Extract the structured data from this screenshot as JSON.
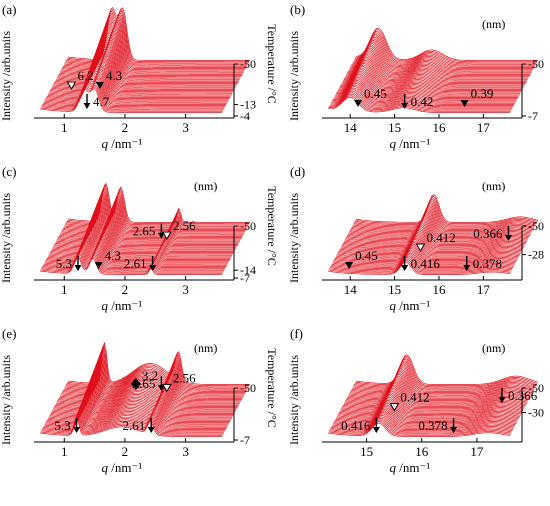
{
  "figure": {
    "y_axis_label": "Intensity /arb.units",
    "right_axis_label": "Temperature /°C",
    "x_axis_label_main": "q",
    "x_axis_label_unit": " /nm⁻¹",
    "trace_color": "#e0101b"
  },
  "chart_data": [
    {
      "panel": "(a)",
      "type": "line",
      "unit_label": "",
      "xlim": [
        0.6,
        3.6
      ],
      "x_ticks": [
        1.0,
        2.0,
        3.0
      ],
      "temp_ticks": [
        "-50",
        "-13",
        "-4"
      ],
      "temp_tick_pos": [
        0.0,
        0.78,
        1.0
      ],
      "trace_count": 46,
      "peaks": [
        {
          "q": 1.32,
          "height": 0.72,
          "width": 0.07
        },
        {
          "q": 1.5,
          "height": 0.72,
          "width": 0.07
        }
      ],
      "annotations": [
        {
          "label": "6.2",
          "marker": "open-triangle",
          "q": 0.98,
          "temp": -30
        },
        {
          "label": "4.7",
          "marker": "arrow",
          "q": 1.25,
          "temp": -27
        },
        {
          "label": "4.3",
          "marker": "filled-triangle",
          "q": 1.45,
          "temp": -30
        }
      ]
    },
    {
      "panel": "(b)",
      "type": "line",
      "unit_label": "(nm)",
      "xlim": [
        13.5,
        17.6
      ],
      "x_ticks": [
        14,
        15,
        16,
        17
      ],
      "temp_ticks": [
        "-50",
        "-7"
      ],
      "temp_tick_pos": [
        0.0,
        1.0
      ],
      "trace_count": 46,
      "peaks": [
        {
          "q": 14.0,
          "height": 0.45,
          "width": 0.18
        },
        {
          "q": 15.2,
          "height": 0.15,
          "width": 0.25
        }
      ],
      "annotations": [
        {
          "label": "0.45",
          "marker": "filled-triangle",
          "q": 14.0,
          "temp": -28
        },
        {
          "label": "0.42",
          "marker": "arrow",
          "q": 15.1,
          "temp": -20
        },
        {
          "label": "0.39",
          "marker": "filled-triangle",
          "q": 16.4,
          "temp": -28
        }
      ]
    },
    {
      "panel": "(c)",
      "type": "line",
      "unit_label": "(nm)",
      "xlim": [
        0.6,
        3.6
      ],
      "x_ticks": [
        1.0,
        2.0,
        3.0
      ],
      "temp_ticks": [
        "-50",
        "-14",
        "-7"
      ],
      "temp_tick_pos": [
        0.0,
        0.85,
        1.0
      ],
      "trace_count": 46,
      "peaks": [
        {
          "q": 1.22,
          "height": 0.55,
          "width": 0.06
        },
        {
          "q": 1.47,
          "height": 0.5,
          "width": 0.06
        },
        {
          "q": 2.43,
          "height": 0.2,
          "width": 0.03
        }
      ],
      "annotations": [
        {
          "label": "5.3",
          "marker": "arrow",
          "q": 1.18,
          "temp": -10
        },
        {
          "label": "4.3",
          "marker": "filled-triangle",
          "q": 1.45,
          "temp": -25
        },
        {
          "label": "2.65",
          "marker": "arrow",
          "q": 2.37,
          "temp": -62
        },
        {
          "label": "2.56",
          "marker": "open-triangle",
          "q": 2.46,
          "temp": -60
        },
        {
          "label": "2.61",
          "marker": "arrow",
          "q": 2.41,
          "temp": -10
        }
      ]
    },
    {
      "panel": "(d)",
      "type": "line",
      "unit_label": "(nm)",
      "xlim": [
        13.5,
        17.6
      ],
      "x_ticks": [
        14,
        15,
        16,
        17
      ],
      "temp_ticks": [
        "-50",
        "-28"
      ],
      "temp_tick_pos": [
        0.0,
        0.55
      ],
      "trace_count": 46,
      "peaks": [
        {
          "q": 15.25,
          "height": 0.4,
          "width": 0.12
        },
        {
          "q": 17.2,
          "height": 0.08,
          "width": 0.3
        }
      ],
      "annotations": [
        {
          "label": "0.45",
          "marker": "filled-triangle",
          "q": 13.85,
          "temp": -20
        },
        {
          "label": "0.416",
          "marker": "arrow",
          "q": 15.1,
          "temp": -20
        },
        {
          "label": "0.412",
          "marker": "open-triangle",
          "q": 15.28,
          "temp": -48
        },
        {
          "label": "0.378",
          "marker": "arrow",
          "q": 16.5,
          "temp": -20
        },
        {
          "label": "0.366",
          "marker": "arrow",
          "q": 17.25,
          "temp": -60
        }
      ]
    },
    {
      "panel": "(e)",
      "type": "line",
      "unit_label": "(nm)",
      "xlim": [
        0.6,
        3.6
      ],
      "x_ticks": [
        1.0,
        2.0,
        3.0
      ],
      "temp_ticks": [
        "-50",
        "-7"
      ],
      "temp_tick_pos": [
        0.0,
        1.0
      ],
      "trace_count": 46,
      "peaks": [
        {
          "q": 1.2,
          "height": 0.58,
          "width": 0.04
        },
        {
          "q": 1.95,
          "height": 0.3,
          "width": 0.28
        },
        {
          "q": 2.42,
          "height": 0.4,
          "width": 0.05
        }
      ],
      "annotations": [
        {
          "label": "5.3",
          "marker": "arrow",
          "q": 1.18,
          "temp": -5
        },
        {
          "label": "3.2",
          "marker": "filled-diamond",
          "q": 1.95,
          "temp": -70
        },
        {
          "label": "2.65",
          "marker": "arrow",
          "q": 2.37,
          "temp": -70
        },
        {
          "label": "2.56",
          "marker": "open-triangle",
          "q": 2.46,
          "temp": -68
        },
        {
          "label": "2.61",
          "marker": "arrow",
          "q": 2.41,
          "temp": -5
        }
      ]
    },
    {
      "panel": "(f)",
      "type": "line",
      "unit_label": "(nm)",
      "xlim": [
        14.3,
        17.6
      ],
      "x_ticks": [
        15,
        16,
        17
      ],
      "temp_ticks": [
        "-50",
        "-30"
      ],
      "temp_tick_pos": [
        0.0,
        0.47
      ],
      "trace_count": 46,
      "peaks": [
        {
          "q": 15.22,
          "height": 0.42,
          "width": 0.12
        },
        {
          "q": 17.2,
          "height": 0.12,
          "width": 0.25
        }
      ],
      "annotations": [
        {
          "label": "0.416",
          "marker": "arrow",
          "q": 15.05,
          "temp": -25
        },
        {
          "label": "0.412",
          "marker": "open-triangle",
          "q": 15.25,
          "temp": -52
        },
        {
          "label": "0.378",
          "marker": "arrow",
          "q": 16.45,
          "temp": -25
        },
        {
          "label": "0.366",
          "marker": "arrow",
          "q": 17.2,
          "temp": -60
        }
      ]
    }
  ]
}
